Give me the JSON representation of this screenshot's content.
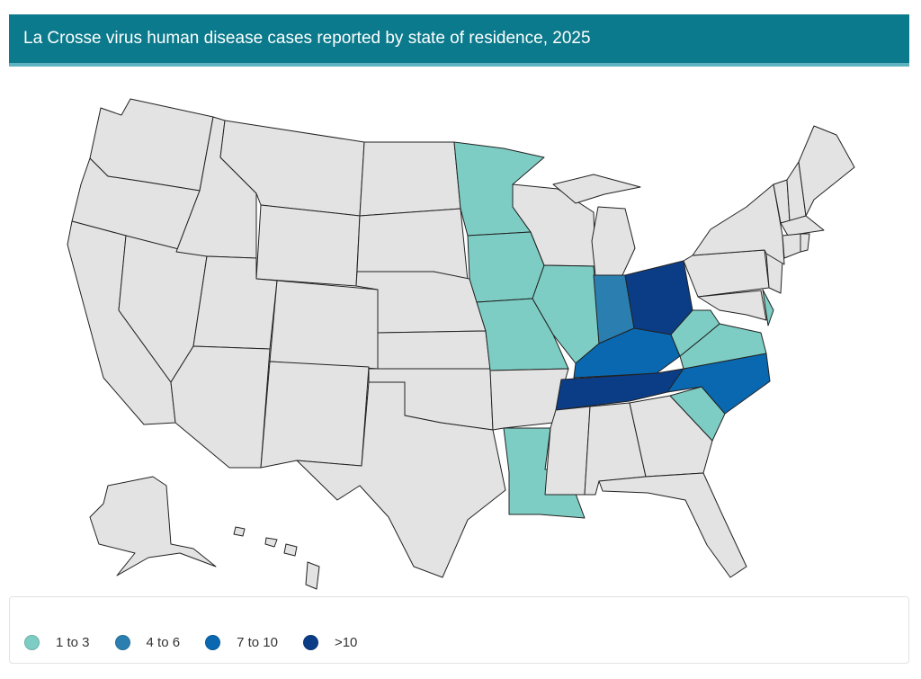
{
  "title": "La Crosse virus human disease cases reported by state of residence, 2025",
  "colors": {
    "header": "#0b7a8c",
    "no_cases": "#e3e3e4",
    "border": "#222222",
    "1 to 3": "#7ecdc4",
    "4 to 6": "#2b7fb0",
    "7 to 10": "#0a68b0",
    ">10": "#0b3d86"
  },
  "legend": [
    {
      "label": "1 to 3",
      "color": "#7ecdc4"
    },
    {
      "label": "4 to 6",
      "color": "#2b7fb0"
    },
    {
      "label": "7 to 10",
      "color": "#0a68b0"
    },
    {
      "label": ">10",
      "color": "#0b3d86"
    }
  ],
  "choropleth": {
    "MN": "1 to 3",
    "IA": "1 to 3",
    "MO": "1 to 3",
    "IL": "1 to 3",
    "LA": "1 to 3",
    "WV": "1 to 3",
    "VA": "1 to 3",
    "SC": "1 to 3",
    "DE": "1 to 3",
    "IN": "4 to 6",
    "KY": "7 to 10",
    "NC": "7 to 10",
    "OH": ">10",
    "TN": ">10"
  }
}
